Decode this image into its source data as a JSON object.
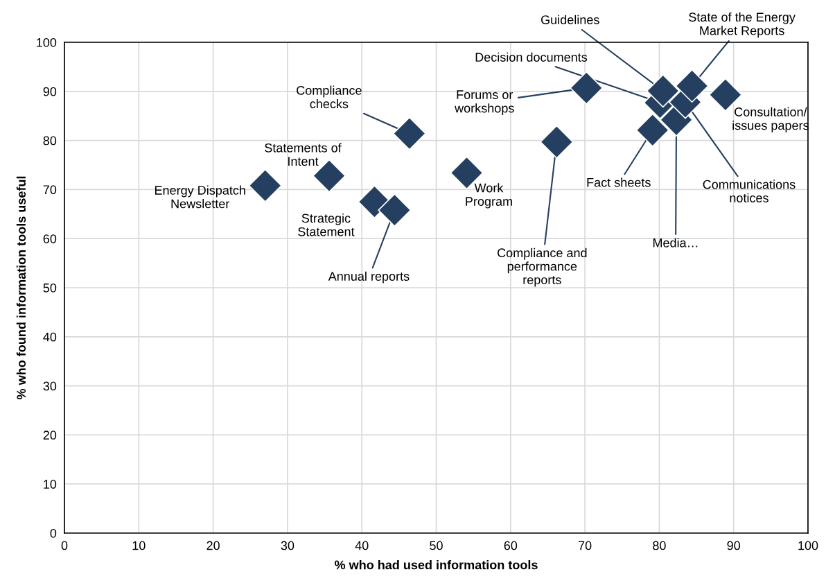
{
  "chart_data": {
    "type": "scatter",
    "xlabel": "% who had used information tools",
    "ylabel": "% who found information tools useful",
    "x": [
      27.0,
      35.6,
      41.7,
      44.4,
      46.4,
      54.1,
      66.2,
      70.2,
      79.1,
      82.3,
      80.1,
      80.5,
      83.5,
      84.4,
      88.9
    ],
    "series": [
      {
        "color": "#243f60",
        "values": [
          70.8,
          72.8,
          67.5,
          65.8,
          81.4,
          73.4,
          79.7,
          90.7,
          82.1,
          84.2,
          87.7,
          90.1,
          87.8,
          91.1,
          89.3
        ]
      }
    ],
    "marker": "diamond",
    "grid": true,
    "xlim": [
      0,
      100
    ],
    "xticks": [
      0,
      10,
      20,
      30,
      40,
      50,
      60,
      70,
      80,
      90,
      100
    ],
    "ylim": [
      0,
      100
    ],
    "yticks": [
      0,
      10,
      20,
      30,
      40,
      50,
      60,
      70,
      80,
      90,
      100
    ],
    "annotations": [
      {
        "text": "Energy Dispatch\nNewsletter",
        "x": 27.0,
        "y": 70.8
      },
      {
        "text": "Statements of\nIntent",
        "x": 35.6,
        "y": 72.8
      },
      {
        "text": "Strategic\nStatement",
        "x": 41.7,
        "y": 67.5
      },
      {
        "text": "Annual reports",
        "x": 44.4,
        "y": 65.8
      },
      {
        "text": "Compliance\nchecks",
        "x": 46.4,
        "y": 81.4
      },
      {
        "text": "Work\nProgram",
        "x": 54.1,
        "y": 73.4
      },
      {
        "text": "Compliance and\nperformance\nreports",
        "x": 66.2,
        "y": 79.7
      },
      {
        "text": "Forums or\nworkshops",
        "x": 70.2,
        "y": 90.7
      },
      {
        "text": "Fact sheets",
        "x": 79.1,
        "y": 82.1
      },
      {
        "text": "Media…",
        "x": 82.3,
        "y": 84.2
      },
      {
        "text": "Decision documents",
        "x": 80.1,
        "y": 87.7
      },
      {
        "text": "Guidelines",
        "x": 80.5,
        "y": 90.1
      },
      {
        "text": "Communications\nnotices",
        "x": 83.5,
        "y": 87.8
      },
      {
        "text": "State of the Energy\nMarket Reports",
        "x": 84.4,
        "y": 91.1
      },
      {
        "text": "Consultation/\nissues papers",
        "x": 88.9,
        "y": 89.3
      }
    ]
  }
}
